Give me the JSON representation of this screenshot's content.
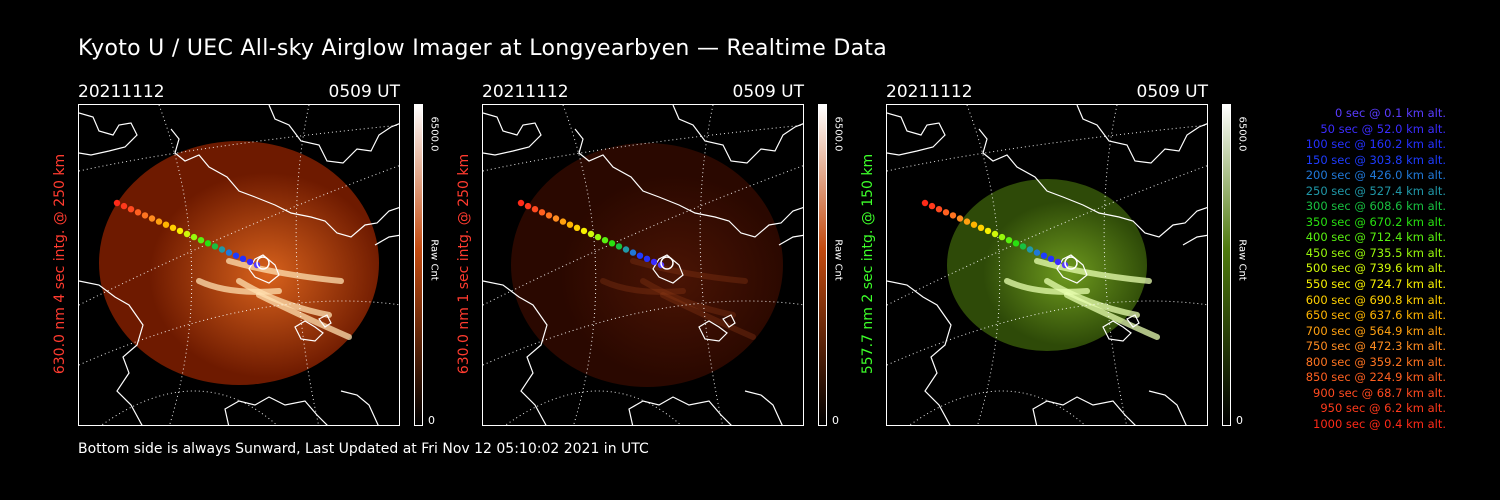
{
  "title": "Kyoto U / UEC All-sky Airglow Imager at Longyearbyen — Realtime Data",
  "footer": "Bottom side is always Sunward, Last Updated at Fri Nov 12 05:10:02 2021 in UTC",
  "panels": [
    {
      "date": "20211112",
      "time": "0509 UT",
      "side_label": "630.0 nm 4 sec intg. @ 250 km",
      "label_color": "#ff3b2f",
      "colorbar": {
        "max": "6500.0",
        "min": "0",
        "unit": "Raw Cnt",
        "color_low": "#000000",
        "color_mid": "#c24a10",
        "color_high": "#ffffff"
      },
      "image_brightness": "bright",
      "image_colors": {
        "base": "#6e1a00",
        "glow": "#d8621c",
        "hot": "#ffe0b0"
      }
    },
    {
      "date": "20211112",
      "time": "0509 UT",
      "side_label": "630.0 nm 1 sec intg. @ 250 km",
      "label_color": "#ff3b2f",
      "colorbar": {
        "max": "6500.0",
        "min": "0",
        "unit": "Raw Cnt",
        "color_low": "#000000",
        "color_mid": "#c24a10",
        "color_high": "#ffffff"
      },
      "image_brightness": "dim",
      "image_colors": {
        "base": "#2a0800",
        "glow": "#4a1404",
        "hot": "#8c3a18"
      }
    },
    {
      "date": "20211112",
      "time": "0509 UT",
      "side_label": "557.7 nm 2 sec intg. @ 150 km",
      "label_color": "#3dff2a",
      "colorbar": {
        "max": "6500.0",
        "min": "0",
        "unit": "Raw Cnt",
        "color_low": "#000000",
        "color_mid": "#4f7a0e",
        "color_high": "#ffffff"
      },
      "image_brightness": "bright",
      "image_colors": {
        "base": "#2e4a08",
        "glow": "#6e9a1e",
        "hot": "#e8ffb0"
      }
    }
  ],
  "trajectory_legend": [
    {
      "text": "0 sec @   0.1 km alt.",
      "color": "#5a3cff"
    },
    {
      "text": "50 sec @  52.0 km alt.",
      "color": "#3b2cff"
    },
    {
      "text": "100 sec @ 160.2 km alt.",
      "color": "#2430ff"
    },
    {
      "text": "150 sec @ 303.8 km alt.",
      "color": "#1e3cff"
    },
    {
      "text": "200 sec @ 426.0 km alt.",
      "color": "#2078d8"
    },
    {
      "text": "250 sec @ 527.4 km alt.",
      "color": "#2098a8"
    },
    {
      "text": "300 sec @ 608.6 km alt.",
      "color": "#18c040"
    },
    {
      "text": "350 sec @ 670.2 km alt.",
      "color": "#28e010"
    },
    {
      "text": "400 sec @ 712.4 km alt.",
      "color": "#58f010"
    },
    {
      "text": "450 sec @ 735.5 km alt.",
      "color": "#98f80c"
    },
    {
      "text": "500 sec @ 739.6 km alt.",
      "color": "#d0f80a"
    },
    {
      "text": "550 sec @ 724.7 km alt.",
      "color": "#f8f000"
    },
    {
      "text": "600 sec @ 690.8 km alt.",
      "color": "#ffd000"
    },
    {
      "text": "650 sec @ 637.6 km alt.",
      "color": "#ffb400"
    },
    {
      "text": "700 sec @ 564.9 km alt.",
      "color": "#ffa010"
    },
    {
      "text": "750 sec @ 472.3 km alt.",
      "color": "#ff8c20"
    },
    {
      "text": "800 sec @ 359.2 km alt.",
      "color": "#ff7420"
    },
    {
      "text": "850 sec @ 224.9 km alt.",
      "color": "#ff6020"
    },
    {
      "text": "900 sec @  68.7 km alt.",
      "color": "#ff4a20"
    },
    {
      "text": "950 sec @   6.2 km alt.",
      "color": "#ff3a1c"
    },
    {
      "text": "1000 sec @   0.4 km alt.",
      "color": "#ff2a18"
    }
  ]
}
